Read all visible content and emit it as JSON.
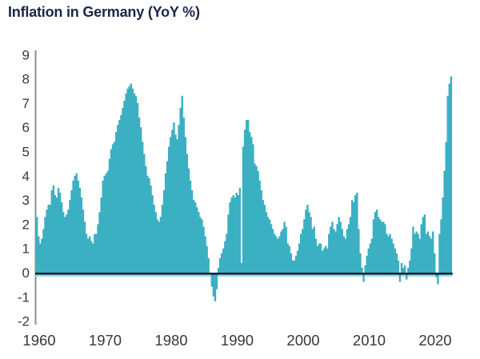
{
  "page": {
    "background": "#FFFFFF"
  },
  "chart_data": {
    "type": "bar",
    "title": "Inflation in Germany (YoY %)",
    "xlabel": "",
    "ylabel": "",
    "unit": "percent, year-over-year",
    "frequency": "quarterly",
    "start_year": 1960,
    "end_year": 2022,
    "ylim": [
      -2,
      9
    ],
    "xlim": [
      1960,
      2023.5
    ],
    "grid": false,
    "legend_position": "none",
    "y_tick_labels": [
      "9",
      "8",
      "7",
      "6",
      "5",
      "4",
      "3",
      "2",
      "1",
      "0",
      "-1",
      "-2"
    ],
    "y_tick_values": [
      9,
      8,
      7,
      6,
      5,
      4,
      3,
      2,
      1,
      0,
      -1,
      -2
    ],
    "x_tick_labels": [
      "1960",
      "1970",
      "1980",
      "1990",
      "2000",
      "2010",
      "2020"
    ],
    "x_tick_values": [
      1960,
      1970,
      1980,
      1990,
      2000,
      2010,
      2020
    ],
    "series": [
      {
        "name": "Germany inflation YoY %",
        "values": [
          2.3,
          1.5,
          1.2,
          1.4,
          1.8,
          2.3,
          2.6,
          2.8,
          2.8,
          3.4,
          3.6,
          3.2,
          3.1,
          3.5,
          3.3,
          2.9,
          2.5,
          2.3,
          2.4,
          2.6,
          3.0,
          3.4,
          3.8,
          4.0,
          4.1,
          3.8,
          3.5,
          3.1,
          2.6,
          2.1,
          1.6,
          1.4,
          1.5,
          1.3,
          1.2,
          1.6,
          1.6,
          2.0,
          2.5,
          3.1,
          3.8,
          4.0,
          4.1,
          4.2,
          4.7,
          5.1,
          5.3,
          5.4,
          5.8,
          6.1,
          6.3,
          6.5,
          6.8,
          7.1,
          7.4,
          7.6,
          7.7,
          7.8,
          7.6,
          7.4,
          7.3,
          7.0,
          6.4,
          6.0,
          5.4,
          4.9,
          4.4,
          4.0,
          3.9,
          3.6,
          3.2,
          2.8,
          2.5,
          2.2,
          2.1,
          2.3,
          2.8,
          3.4,
          4.1,
          4.6,
          5.2,
          5.6,
          5.9,
          6.2,
          5.7,
          5.5,
          6.1,
          6.8,
          7.3,
          6.4,
          5.6,
          4.9,
          4.3,
          3.8,
          3.4,
          3.0,
          2.9,
          2.7,
          2.5,
          2.3,
          2.2,
          1.9,
          1.5,
          1.1,
          0.6,
          0.0,
          -0.5,
          -0.9,
          -1.1,
          -0.6,
          0.2,
          0.6,
          0.8,
          1.0,
          1.3,
          1.6,
          2.4,
          2.9,
          3.1,
          3.2,
          3.1,
          3.3,
          3.2,
          3.5,
          0.4,
          5.2,
          5.9,
          6.3,
          6.3,
          5.8,
          5.6,
          5.3,
          4.5,
          4.4,
          4.2,
          3.8,
          3.4,
          3.0,
          2.8,
          2.5,
          2.3,
          2.2,
          2.0,
          1.8,
          1.6,
          1.5,
          1.4,
          1.5,
          1.7,
          1.8,
          2.1,
          1.9,
          1.2,
          1.1,
          0.8,
          0.5,
          0.5,
          0.7,
          0.9,
          1.2,
          1.6,
          1.8,
          2.2,
          2.6,
          2.8,
          2.5,
          2.3,
          1.8,
          1.9,
          1.4,
          1.1,
          1.2,
          1.2,
          0.9,
          1.0,
          1.1,
          1.0,
          1.6,
          1.9,
          2.1,
          1.8,
          1.7,
          2.0,
          2.3,
          2.1,
          1.8,
          1.5,
          1.4,
          1.8,
          2.0,
          2.3,
          3.0,
          2.9,
          3.2,
          3.3,
          1.8,
          0.8,
          0.2,
          -0.3,
          0.3,
          0.7,
          1.0,
          1.2,
          1.4,
          2.2,
          2.5,
          2.6,
          2.3,
          2.2,
          2.1,
          2.1,
          2.0,
          1.6,
          1.5,
          1.6,
          1.4,
          1.2,
          1.0,
          0.8,
          0.5,
          -0.3,
          0.4,
          0.2,
          0.3,
          -0.2,
          0.2,
          0.5,
          1.0,
          1.9,
          1.6,
          1.7,
          1.6,
          1.4,
          2.0,
          2.3,
          2.4,
          1.6,
          1.7,
          1.5,
          1.4,
          1.7,
          0.8,
          -0.1,
          -0.4,
          1.6,
          2.2,
          3.1,
          4.2,
          5.4,
          7.3,
          7.8,
          8.1
        ]
      }
    ],
    "colors": {
      "bar": "#3BB0C2",
      "zero_line": "#111F38",
      "zero_line_light": "#9EDEE6",
      "axis_line": "#8B8F94",
      "title_text": "#1D2646",
      "tick_text": "#37373F",
      "background": "#FFFFFF"
    }
  }
}
